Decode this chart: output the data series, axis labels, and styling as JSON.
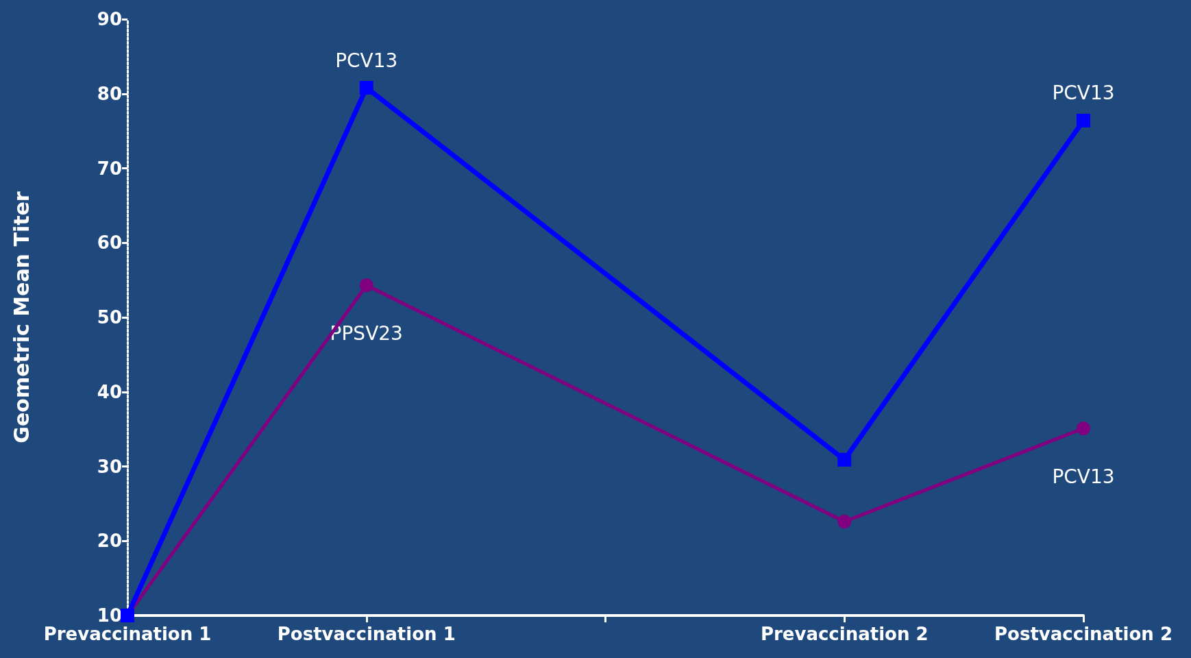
{
  "chart_data": {
    "type": "line",
    "ylabel": "Geometric Mean Titer",
    "categories": [
      "Prevaccination 1",
      "Postvaccination 1",
      null,
      "Prevaccination 2",
      "Postvaccination 2"
    ],
    "series": [
      {
        "color": "#0000ff",
        "marker": "square",
        "values": [
          10,
          80.8,
          null,
          30.9,
          76.4
        ]
      },
      {
        "color": "#800080",
        "marker": "circle",
        "values": [
          10,
          54.3,
          null,
          22.6,
          35.1
        ]
      }
    ],
    "ylim": [
      10,
      90
    ],
    "yticks": [
      10,
      20,
      30,
      40,
      50,
      60,
      70,
      80,
      90
    ],
    "grid": false,
    "annotations": [
      {
        "text": "PCV13",
        "x": "Postvaccination 1",
        "y": 80.8
      },
      {
        "text": "PPSV23",
        "x": "Postvaccination 1",
        "y": 54.3
      },
      {
        "text": "PCV13",
        "x": "Postvaccination 2",
        "y": 76.4
      },
      {
        "text": "PCV13",
        "x": "Postvaccination 2",
        "y": 35.1
      }
    ]
  }
}
